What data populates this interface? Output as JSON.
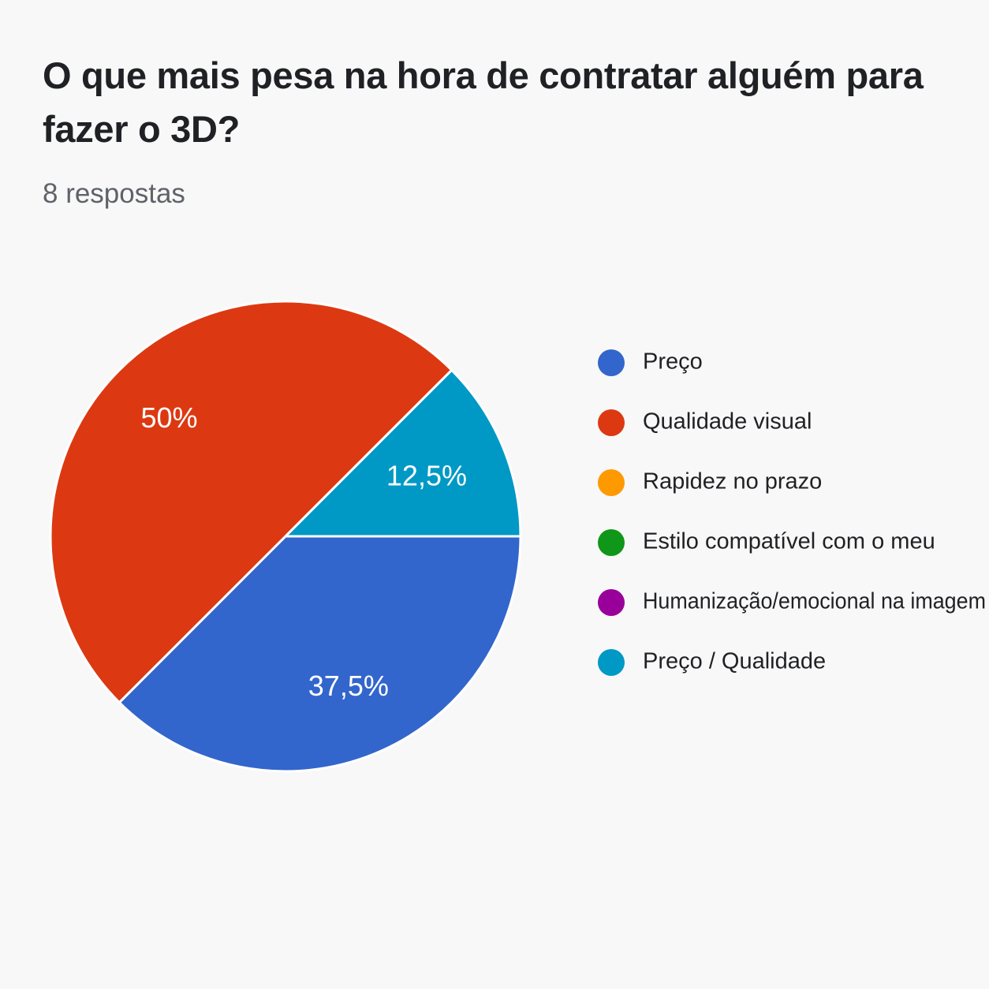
{
  "header": {
    "title": "O que mais pesa na hora de contratar alguém para fazer o 3D?",
    "subtitle": "8 respostas"
  },
  "chart_data": {
    "type": "pie",
    "title": "O que mais pesa na hora de contratar alguém para fazer o 3D?",
    "subtitle": "8 respostas",
    "legend_position": "right",
    "categories": [
      "Preço",
      "Qualidade visual",
      "Rapidez no prazo",
      "Estilo compatível com o meu",
      "Humanização/emocional na imagem",
      "Preço / Qualidade"
    ],
    "values": [
      37.5,
      50,
      0,
      0,
      0,
      12.5
    ],
    "labels": [
      "37,5%",
      "50%",
      "",
      "",
      "",
      "12,5%"
    ],
    "colors": [
      "#3366cc",
      "#dc3912",
      "#ff9900",
      "#109618",
      "#990099",
      "#0099c6"
    ]
  }
}
